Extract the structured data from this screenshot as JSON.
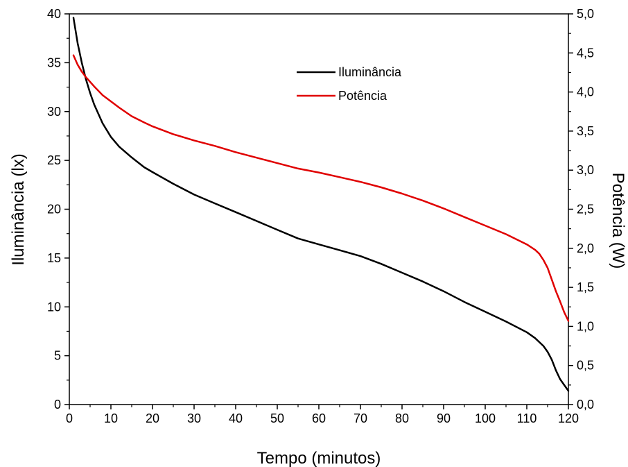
{
  "chart_data": {
    "type": "line",
    "xlabel": "Tempo (minutos)",
    "ylabel_left": "Iluminância (lx)",
    "ylabel_right": "Potência (W)",
    "xlim": [
      0,
      120
    ],
    "ylim_left": [
      0,
      40
    ],
    "ylim_right": [
      0.0,
      5.0
    ],
    "x_ticks": [
      "0",
      "10",
      "20",
      "30",
      "40",
      "50",
      "60",
      "70",
      "80",
      "90",
      "100",
      "110",
      "120"
    ],
    "y_ticks_left": [
      "0",
      "5",
      "10",
      "15",
      "20",
      "25",
      "30",
      "35",
      "40"
    ],
    "y_ticks_right": [
      "0,0",
      "0,5",
      "1,0",
      "1,5",
      "2,0",
      "2,5",
      "3,0",
      "3,5",
      "4,0",
      "4,5",
      "5,0"
    ],
    "grid": false,
    "legend_position": "top-center",
    "series": [
      {
        "name": "Iluminância",
        "color": "#000000",
        "axis": "left",
        "x": [
          1,
          2,
          3,
          4,
          5,
          6,
          8,
          10,
          12,
          15,
          18,
          20,
          25,
          30,
          35,
          40,
          45,
          50,
          55,
          60,
          65,
          70,
          75,
          80,
          85,
          90,
          95,
          100,
          105,
          110,
          112,
          114,
          115,
          116,
          117,
          118,
          119,
          120
        ],
        "values": [
          39.6,
          37.0,
          35.0,
          33.3,
          31.9,
          30.7,
          28.8,
          27.4,
          26.4,
          25.3,
          24.3,
          23.8,
          22.6,
          21.5,
          20.6,
          19.7,
          18.8,
          17.9,
          17.0,
          16.4,
          15.8,
          15.2,
          14.4,
          13.5,
          12.6,
          11.6,
          10.5,
          9.5,
          8.5,
          7.4,
          6.8,
          6.0,
          5.4,
          4.6,
          3.5,
          2.6,
          2.0,
          1.4
        ]
      },
      {
        "name": "Potência",
        "color": "#e00000",
        "axis": "right",
        "x": [
          1,
          2,
          3,
          4,
          5,
          6,
          8,
          10,
          12,
          15,
          18,
          20,
          25,
          30,
          35,
          40,
          45,
          50,
          55,
          60,
          65,
          70,
          75,
          80,
          85,
          90,
          95,
          100,
          105,
          110,
          112,
          113,
          114,
          115,
          116,
          117,
          118,
          119,
          120
        ],
        "values": [
          4.47,
          4.35,
          4.26,
          4.19,
          4.13,
          4.07,
          3.96,
          3.88,
          3.8,
          3.69,
          3.61,
          3.56,
          3.46,
          3.38,
          3.31,
          3.23,
          3.16,
          3.09,
          3.02,
          2.97,
          2.91,
          2.85,
          2.78,
          2.7,
          2.61,
          2.51,
          2.4,
          2.29,
          2.18,
          2.05,
          1.98,
          1.93,
          1.85,
          1.75,
          1.6,
          1.45,
          1.32,
          1.18,
          1.07
        ]
      }
    ]
  }
}
